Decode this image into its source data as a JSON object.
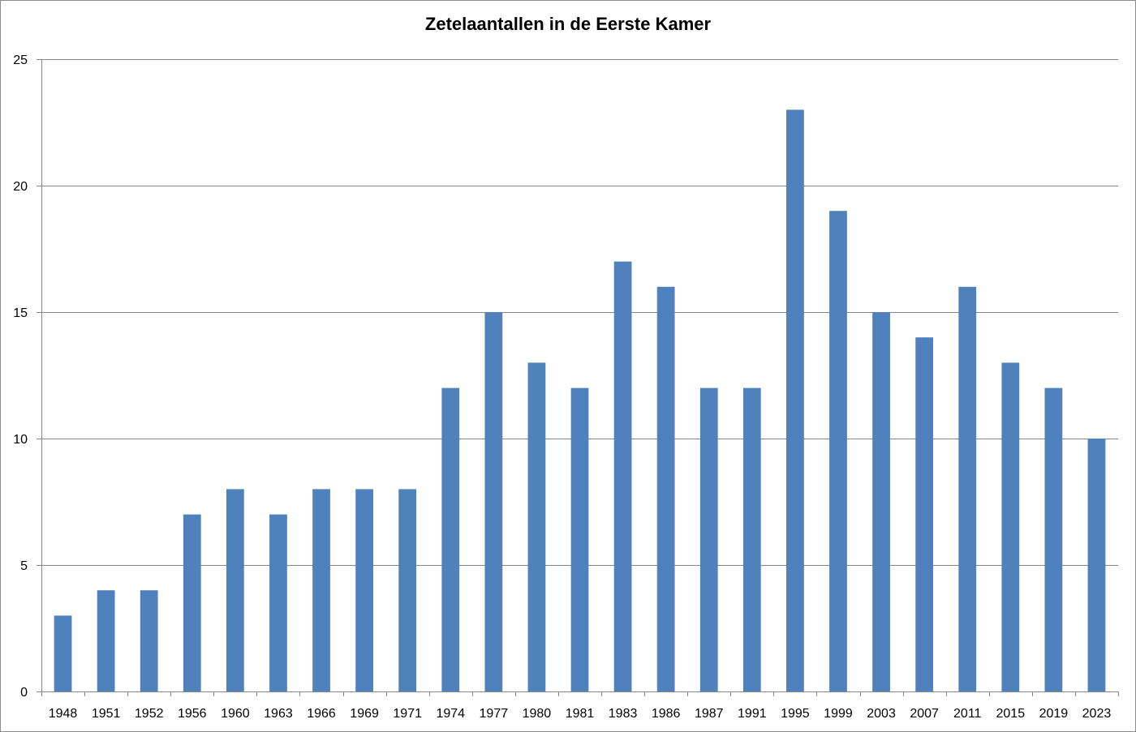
{
  "chart_data": {
    "type": "bar",
    "title": "Zetelaantallen in de Eerste Kamer",
    "xlabel": "",
    "ylabel": "",
    "categories": [
      "1948",
      "1951",
      "1952",
      "1956",
      "1960",
      "1963",
      "1966",
      "1969",
      "1971",
      "1974",
      "1977",
      "1980",
      "1981",
      "1983",
      "1986",
      "1987",
      "1991",
      "1995",
      "1999",
      "2003",
      "2007",
      "2011",
      "2015",
      "2019",
      "2023"
    ],
    "values": [
      3,
      4,
      4,
      7,
      8,
      7,
      8,
      8,
      8,
      12,
      15,
      13,
      12,
      17,
      16,
      12,
      12,
      23,
      19,
      15,
      14,
      16,
      13,
      12,
      10
    ],
    "ylim": [
      0,
      25
    ],
    "yticks": [
      0,
      5,
      10,
      15,
      20,
      25
    ],
    "grid": true,
    "legend": "none",
    "bar_color": "#4F81BD",
    "grid_color": "#868686"
  }
}
